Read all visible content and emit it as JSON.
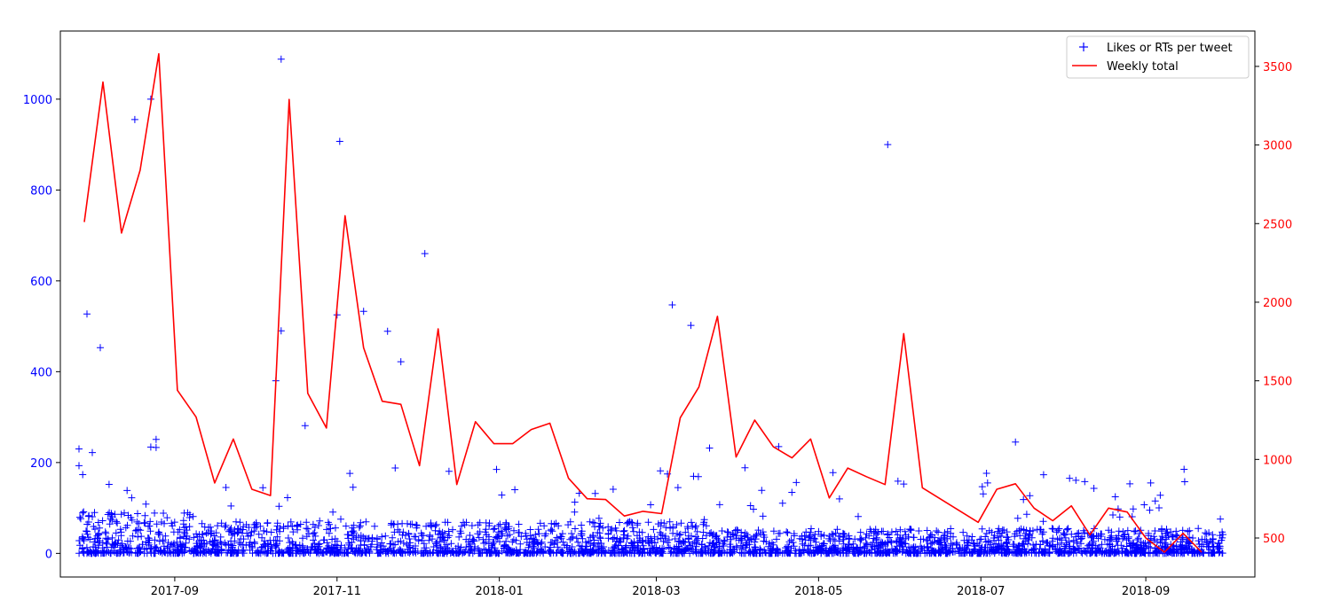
{
  "chart_data": {
    "type": "scatter+line",
    "title": "",
    "xlabel": "",
    "ylabel": "",
    "legend": {
      "placement": "top-right"
    },
    "grid": false,
    "x_axis": {
      "type": "date",
      "range": [
        "2017-07-20",
        "2018-10-12"
      ],
      "ticks": [
        {
          "date": "2017-09-01",
          "label": "2017-09"
        },
        {
          "date": "2017-11-01",
          "label": "2017-11"
        },
        {
          "date": "2018-01-01",
          "label": "2018-01"
        },
        {
          "date": "2018-03-01",
          "label": "2018-03"
        },
        {
          "date": "2018-05-01",
          "label": "2018-05"
        },
        {
          "date": "2018-07-01",
          "label": "2018-07"
        },
        {
          "date": "2018-09-01",
          "label": "2018-09"
        }
      ]
    },
    "y_left": {
      "range": [
        -52,
        1150
      ],
      "ticks": [
        0,
        200,
        400,
        600,
        800,
        1000
      ],
      "color": "#0000ff"
    },
    "y_right": {
      "range": [
        252,
        3725
      ],
      "ticks": [
        500,
        1000,
        1500,
        2000,
        2500,
        3000,
        3500
      ],
      "color": "#ff0000"
    },
    "series": [
      {
        "name": "Likes or RTs per tweet",
        "kind": "scatter",
        "marker": "+",
        "color": "#0000ff",
        "axis": "left",
        "date_range": [
          "2017-07-27",
          "2018-09-30"
        ],
        "typical_range": [
          0,
          80
        ],
        "outliers": [
          {
            "date": "2017-07-27",
            "value": 230
          },
          {
            "date": "2017-07-27",
            "value": 193
          },
          {
            "date": "2017-07-30",
            "value": 527
          },
          {
            "date": "2017-08-01",
            "value": 222
          },
          {
            "date": "2017-08-04",
            "value": 453
          },
          {
            "date": "2017-08-17",
            "value": 955
          },
          {
            "date": "2017-08-23",
            "value": 1000
          },
          {
            "date": "2017-08-23",
            "value": 234
          },
          {
            "date": "2017-08-25",
            "value": 251
          },
          {
            "date": "2017-08-25",
            "value": 233
          },
          {
            "date": "2017-10-09",
            "value": 380
          },
          {
            "date": "2017-10-11",
            "value": 1088
          },
          {
            "date": "2017-10-11",
            "value": 490
          },
          {
            "date": "2017-10-20",
            "value": 281
          },
          {
            "date": "2017-11-01",
            "value": 525
          },
          {
            "date": "2017-11-02",
            "value": 907
          },
          {
            "date": "2017-11-11",
            "value": 533
          },
          {
            "date": "2017-11-20",
            "value": 489
          },
          {
            "date": "2017-11-25",
            "value": 422
          },
          {
            "date": "2017-12-04",
            "value": 660
          },
          {
            "date": "2018-03-07",
            "value": 547
          },
          {
            "date": "2018-03-14",
            "value": 502
          },
          {
            "date": "2018-03-21",
            "value": 232
          },
          {
            "date": "2018-04-16",
            "value": 235
          },
          {
            "date": "2018-05-27",
            "value": 900
          },
          {
            "date": "2018-07-14",
            "value": 245
          }
        ]
      },
      {
        "name": "Weekly total",
        "kind": "line",
        "color": "#ff0000",
        "axis": "right",
        "x": [
          "2017-07-29",
          "2017-08-05",
          "2017-08-12",
          "2017-08-19",
          "2017-08-26",
          "2017-09-02",
          "2017-09-09",
          "2017-09-16",
          "2017-09-23",
          "2017-09-30",
          "2017-10-07",
          "2017-10-14",
          "2017-10-21",
          "2017-10-28",
          "2017-11-04",
          "2017-11-11",
          "2017-11-18",
          "2017-11-25",
          "2017-12-02",
          "2017-12-09",
          "2017-12-16",
          "2017-12-23",
          "2017-12-30",
          "2018-01-06",
          "2018-01-13",
          "2018-01-20",
          "2018-01-27",
          "2018-02-03",
          "2018-02-10",
          "2018-02-17",
          "2018-02-24",
          "2018-03-03",
          "2018-03-10",
          "2018-03-17",
          "2018-03-24",
          "2018-03-31",
          "2018-04-07",
          "2018-04-14",
          "2018-04-21",
          "2018-04-28",
          "2018-05-05",
          "2018-05-12",
          "2018-05-19",
          "2018-05-26",
          "2018-06-02",
          "2018-06-09",
          "2018-06-30",
          "2018-07-07",
          "2018-07-14",
          "2018-07-21",
          "2018-07-28",
          "2018-08-04",
          "2018-08-11",
          "2018-08-18",
          "2018-08-25",
          "2018-09-01",
          "2018-09-08",
          "2018-09-15",
          "2018-09-22"
        ],
        "values": [
          2510,
          3400,
          2440,
          2840,
          3580,
          1440,
          1270,
          850,
          1130,
          810,
          770,
          3290,
          1420,
          1200,
          2550,
          1710,
          1370,
          1350,
          960,
          1830,
          840,
          1240,
          1100,
          1100,
          1190,
          1230,
          880,
          750,
          745,
          640,
          670,
          655,
          1265,
          1460,
          1910,
          1015,
          1250,
          1080,
          1010,
          1130,
          755,
          945,
          890,
          840,
          1800,
          820,
          600,
          810,
          845,
          690,
          610,
          705,
          520,
          690,
          665,
          500,
          410,
          530,
          410
        ]
      }
    ]
  }
}
